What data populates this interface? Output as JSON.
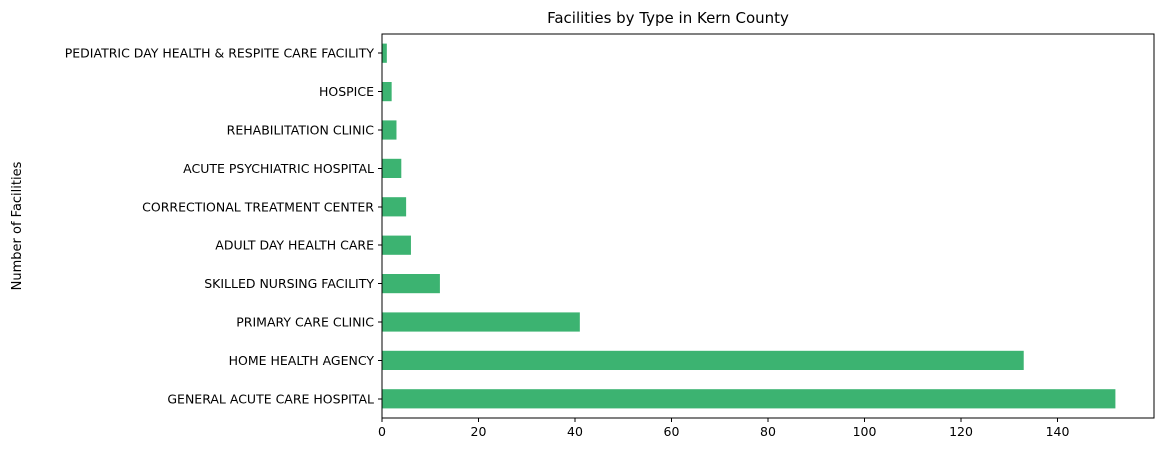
{
  "chart_data": {
    "type": "bar",
    "orientation": "horizontal",
    "title": "Facilities by Type in Kern County",
    "xlabel": "",
    "ylabel": "Number of Facilities",
    "color": "#3cb371",
    "xlim": [
      0,
      160
    ],
    "xticks": [
      0,
      20,
      40,
      60,
      80,
      100,
      120,
      140
    ],
    "categories": [
      "GENERAL ACUTE CARE HOSPITAL",
      "HOME HEALTH AGENCY",
      "PRIMARY CARE CLINIC",
      "SKILLED NURSING FACILITY",
      "ADULT DAY HEALTH CARE",
      "CORRECTIONAL TREATMENT CENTER",
      "ACUTE PSYCHIATRIC HOSPITAL",
      "REHABILITATION CLINIC",
      "HOSPICE",
      "PEDIATRIC DAY HEALTH & RESPITE CARE FACILITY"
    ],
    "values": [
      152,
      133,
      41,
      12,
      6,
      5,
      4,
      3,
      2,
      1
    ],
    "grid": false,
    "legend": "none"
  }
}
